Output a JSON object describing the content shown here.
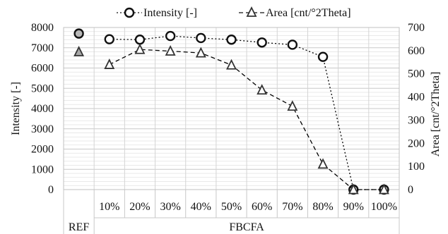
{
  "chart_data": {
    "type": "line",
    "categories": [
      "",
      "10%",
      "20%",
      "30%",
      "40%",
      "50%",
      "60%",
      "70%",
      "80%",
      "90%",
      "100%"
    ],
    "groups": [
      {
        "label": "REF",
        "categories": [
          ""
        ]
      },
      {
        "label": "FBCFA",
        "categories": [
          "10%",
          "20%",
          "30%",
          "40%",
          "50%",
          "60%",
          "70%",
          "80%",
          "90%",
          "100%"
        ]
      }
    ],
    "series": [
      {
        "name": "Intensity [-]",
        "axis": "left",
        "marker": "circle",
        "line_style": "dotted",
        "values": [
          7700,
          7420,
          7400,
          7580,
          7480,
          7400,
          7260,
          7150,
          6550,
          0,
          0
        ],
        "color": "#000000"
      },
      {
        "name": "Area [cnt/°2Theta]",
        "axis": "right",
        "marker": "triangle",
        "line_style": "dashed",
        "values": [
          595,
          540,
          605,
          598,
          590,
          538,
          430,
          360,
          110,
          0,
          0
        ],
        "color": "#000000"
      }
    ],
    "ylabel": "Intensity [-]",
    "y2label": "Area [cnt/°2Theta]",
    "ylim": [
      0,
      8000
    ],
    "y2lim": [
      0,
      700
    ],
    "yticks": [
      "0",
      "1000",
      "2000",
      "3000",
      "4000",
      "5000",
      "6000",
      "7000",
      "8000"
    ],
    "y2ticks": [
      "0",
      "100",
      "200",
      "300",
      "400",
      "500",
      "600",
      "700"
    ],
    "grid": true,
    "legend_position": "top-center",
    "ref_marker_fill": "#b8b8b8"
  }
}
